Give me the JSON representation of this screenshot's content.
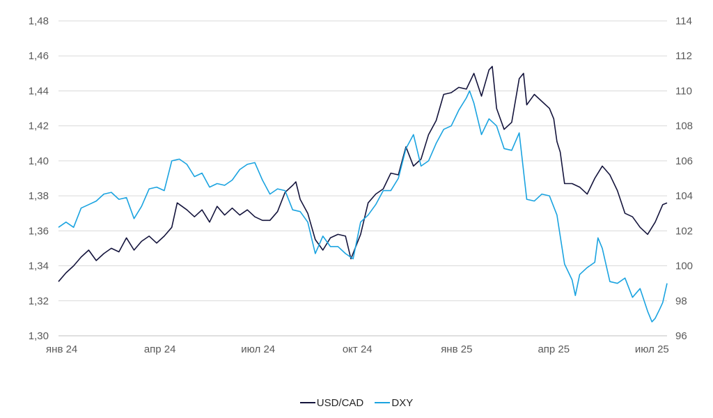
{
  "colors": {
    "usd_cad": "#14143c",
    "dxy": "#1aa3e0",
    "grid": "#d9d9d9",
    "axis": "#bfbfbf",
    "text": "#595959"
  },
  "chart_data": {
    "type": "line",
    "x_tick_labels": [
      "янв 24",
      "апр 24",
      "июл 24",
      "окт 24",
      "янв 25",
      "апр 25",
      "июл 25"
    ],
    "x_tick_dates": [
      "2024-01-01",
      "2024-04-01",
      "2024-07-01",
      "2024-10-01",
      "2025-01-01",
      "2025-04-01",
      "2025-07-01"
    ],
    "x_range": [
      "2023-12-29",
      "2025-07-15"
    ],
    "y_left": {
      "lim": [
        1.3,
        1.48
      ],
      "ticks": [
        "1,30",
        "1,32",
        "1,34",
        "1,36",
        "1,38",
        "1,40",
        "1,42",
        "1,44",
        "1,46",
        "1,48"
      ]
    },
    "y_right": {
      "lim": [
        96,
        114
      ],
      "ticks": [
        "96",
        "98",
        "100",
        "102",
        "104",
        "106",
        "108",
        "110",
        "112",
        "114"
      ]
    },
    "grid": true,
    "legend_position": "bottom",
    "series": [
      {
        "name": "USD/CAD",
        "axis": "left",
        "color": "#14143c",
        "points": [
          [
            "2023-12-29",
            1.331
          ],
          [
            "2024-01-05",
            1.336
          ],
          [
            "2024-01-12",
            1.34
          ],
          [
            "2024-01-19",
            1.345
          ],
          [
            "2024-01-26",
            1.349
          ],
          [
            "2024-02-02",
            1.343
          ],
          [
            "2024-02-09",
            1.347
          ],
          [
            "2024-02-16",
            1.35
          ],
          [
            "2024-02-23",
            1.348
          ],
          [
            "2024-03-01",
            1.356
          ],
          [
            "2024-03-08",
            1.349
          ],
          [
            "2024-03-15",
            1.354
          ],
          [
            "2024-03-22",
            1.357
          ],
          [
            "2024-03-29",
            1.353
          ],
          [
            "2024-04-05",
            1.357
          ],
          [
            "2024-04-12",
            1.362
          ],
          [
            "2024-04-17",
            1.376
          ],
          [
            "2024-04-26",
            1.372
          ],
          [
            "2024-05-03",
            1.368
          ],
          [
            "2024-05-10",
            1.372
          ],
          [
            "2024-05-17",
            1.365
          ],
          [
            "2024-05-24",
            1.374
          ],
          [
            "2024-05-31",
            1.369
          ],
          [
            "2024-06-07",
            1.373
          ],
          [
            "2024-06-14",
            1.369
          ],
          [
            "2024-06-21",
            1.372
          ],
          [
            "2024-06-28",
            1.368
          ],
          [
            "2024-07-05",
            1.366
          ],
          [
            "2024-07-12",
            1.366
          ],
          [
            "2024-07-19",
            1.371
          ],
          [
            "2024-07-26",
            1.382
          ],
          [
            "2024-08-02",
            1.386
          ],
          [
            "2024-08-05",
            1.388
          ],
          [
            "2024-08-09",
            1.378
          ],
          [
            "2024-08-16",
            1.37
          ],
          [
            "2024-08-23",
            1.355
          ],
          [
            "2024-08-30",
            1.349
          ],
          [
            "2024-09-06",
            1.356
          ],
          [
            "2024-09-13",
            1.358
          ],
          [
            "2024-09-20",
            1.357
          ],
          [
            "2024-09-25",
            1.344
          ],
          [
            "2024-10-04",
            1.358
          ],
          [
            "2024-10-11",
            1.376
          ],
          [
            "2024-10-18",
            1.381
          ],
          [
            "2024-10-25",
            1.384
          ],
          [
            "2024-11-01",
            1.393
          ],
          [
            "2024-11-08",
            1.392
          ],
          [
            "2024-11-15",
            1.408
          ],
          [
            "2024-11-22",
            1.397
          ],
          [
            "2024-11-29",
            1.401
          ],
          [
            "2024-12-06",
            1.415
          ],
          [
            "2024-12-13",
            1.423
          ],
          [
            "2024-12-20",
            1.438
          ],
          [
            "2024-12-27",
            1.439
          ],
          [
            "2025-01-03",
            1.442
          ],
          [
            "2025-01-10",
            1.441
          ],
          [
            "2025-01-17",
            1.45
          ],
          [
            "2025-01-24",
            1.437
          ],
          [
            "2025-01-31",
            1.452
          ],
          [
            "2025-02-03",
            1.454
          ],
          [
            "2025-02-07",
            1.43
          ],
          [
            "2025-02-14",
            1.418
          ],
          [
            "2025-02-21",
            1.422
          ],
          [
            "2025-02-28",
            1.447
          ],
          [
            "2025-03-04",
            1.45
          ],
          [
            "2025-03-07",
            1.432
          ],
          [
            "2025-03-14",
            1.438
          ],
          [
            "2025-03-21",
            1.434
          ],
          [
            "2025-03-28",
            1.43
          ],
          [
            "2025-04-01",
            1.424
          ],
          [
            "2025-04-04",
            1.411
          ],
          [
            "2025-04-07",
            1.405
          ],
          [
            "2025-04-11",
            1.387
          ],
          [
            "2025-04-18",
            1.387
          ],
          [
            "2025-04-25",
            1.385
          ],
          [
            "2025-05-02",
            1.381
          ],
          [
            "2025-05-09",
            1.39
          ],
          [
            "2025-05-16",
            1.397
          ],
          [
            "2025-05-23",
            1.392
          ],
          [
            "2025-05-30",
            1.383
          ],
          [
            "2025-06-06",
            1.37
          ],
          [
            "2025-06-13",
            1.368
          ],
          [
            "2025-06-20",
            1.362
          ],
          [
            "2025-06-27",
            1.358
          ],
          [
            "2025-07-04",
            1.365
          ],
          [
            "2025-07-11",
            1.375
          ],
          [
            "2025-07-15",
            1.376
          ]
        ]
      },
      {
        "name": "DXY",
        "axis": "right",
        "color": "#1aa3e0",
        "points": [
          [
            "2023-12-29",
            102.2
          ],
          [
            "2024-01-05",
            102.5
          ],
          [
            "2024-01-12",
            102.2
          ],
          [
            "2024-01-19",
            103.3
          ],
          [
            "2024-01-26",
            103.5
          ],
          [
            "2024-02-02",
            103.7
          ],
          [
            "2024-02-09",
            104.1
          ],
          [
            "2024-02-16",
            104.2
          ],
          [
            "2024-02-23",
            103.8
          ],
          [
            "2024-03-01",
            103.9
          ],
          [
            "2024-03-08",
            102.7
          ],
          [
            "2024-03-15",
            103.4
          ],
          [
            "2024-03-22",
            104.4
          ],
          [
            "2024-03-29",
            104.5
          ],
          [
            "2024-04-05",
            104.3
          ],
          [
            "2024-04-12",
            106.0
          ],
          [
            "2024-04-19",
            106.1
          ],
          [
            "2024-04-26",
            105.8
          ],
          [
            "2024-05-03",
            105.1
          ],
          [
            "2024-05-10",
            105.3
          ],
          [
            "2024-05-17",
            104.5
          ],
          [
            "2024-05-24",
            104.7
          ],
          [
            "2024-05-31",
            104.6
          ],
          [
            "2024-06-07",
            104.9
          ],
          [
            "2024-06-14",
            105.5
          ],
          [
            "2024-06-21",
            105.8
          ],
          [
            "2024-06-28",
            105.9
          ],
          [
            "2024-07-05",
            104.9
          ],
          [
            "2024-07-12",
            104.1
          ],
          [
            "2024-07-19",
            104.4
          ],
          [
            "2024-07-26",
            104.3
          ],
          [
            "2024-08-02",
            103.2
          ],
          [
            "2024-08-09",
            103.1
          ],
          [
            "2024-08-16",
            102.5
          ],
          [
            "2024-08-23",
            100.7
          ],
          [
            "2024-08-30",
            101.7
          ],
          [
            "2024-09-06",
            101.1
          ],
          [
            "2024-09-13",
            101.1
          ],
          [
            "2024-09-20",
            100.7
          ],
          [
            "2024-09-27",
            100.4
          ],
          [
            "2024-10-04",
            102.5
          ],
          [
            "2024-10-11",
            102.9
          ],
          [
            "2024-10-18",
            103.5
          ],
          [
            "2024-10-25",
            104.3
          ],
          [
            "2024-11-01",
            104.3
          ],
          [
            "2024-11-08",
            105.0
          ],
          [
            "2024-11-15",
            106.7
          ],
          [
            "2024-11-22",
            107.5
          ],
          [
            "2024-11-29",
            105.7
          ],
          [
            "2024-12-06",
            106.0
          ],
          [
            "2024-12-13",
            107.0
          ],
          [
            "2024-12-20",
            107.8
          ],
          [
            "2024-12-27",
            108.0
          ],
          [
            "2025-01-03",
            108.9
          ],
          [
            "2025-01-10",
            109.6
          ],
          [
            "2025-01-13",
            110.0
          ],
          [
            "2025-01-17",
            109.3
          ],
          [
            "2025-01-24",
            107.5
          ],
          [
            "2025-01-31",
            108.4
          ],
          [
            "2025-02-07",
            108.0
          ],
          [
            "2025-02-14",
            106.7
          ],
          [
            "2025-02-21",
            106.6
          ],
          [
            "2025-02-28",
            107.6
          ],
          [
            "2025-03-07",
            103.8
          ],
          [
            "2025-03-14",
            103.7
          ],
          [
            "2025-03-21",
            104.1
          ],
          [
            "2025-03-28",
            104.0
          ],
          [
            "2025-04-04",
            102.9
          ],
          [
            "2025-04-11",
            100.1
          ],
          [
            "2025-04-18",
            99.2
          ],
          [
            "2025-04-21",
            98.3
          ],
          [
            "2025-04-25",
            99.5
          ],
          [
            "2025-05-02",
            99.9
          ],
          [
            "2025-05-09",
            100.2
          ],
          [
            "2025-05-12",
            101.6
          ],
          [
            "2025-05-16",
            101.0
          ],
          [
            "2025-05-23",
            99.1
          ],
          [
            "2025-05-30",
            99.0
          ],
          [
            "2025-06-06",
            99.3
          ],
          [
            "2025-06-13",
            98.2
          ],
          [
            "2025-06-20",
            98.7
          ],
          [
            "2025-06-27",
            97.4
          ],
          [
            "2025-07-01",
            96.8
          ],
          [
            "2025-07-04",
            97.0
          ],
          [
            "2025-07-08",
            97.5
          ],
          [
            "2025-07-11",
            97.9
          ],
          [
            "2025-07-15",
            99.0
          ]
        ]
      }
    ]
  }
}
